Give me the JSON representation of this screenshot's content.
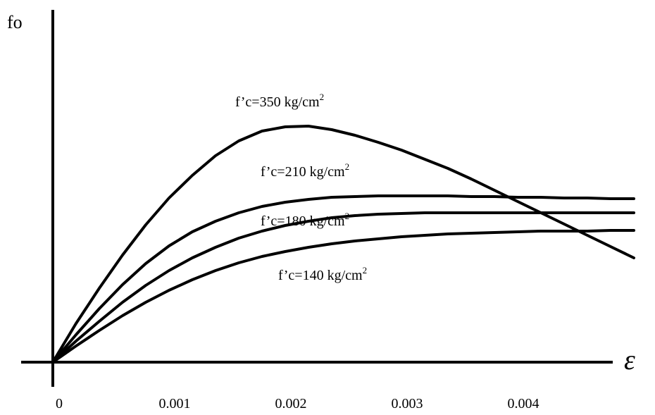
{
  "chart_data": {
    "type": "line",
    "title": "",
    "ylabel": "fo",
    "xlabel": "ε",
    "xlim": [
      0,
      0.005
    ],
    "ylim": [
      0,
      420
    ],
    "xticks": [
      "0",
      "0.001",
      "0.002",
      "0.003",
      "0.004"
    ],
    "xtick_values": [
      0,
      0.001,
      0.002,
      0.003,
      0.004
    ],
    "series": [
      {
        "name": "f’c=350 kg/cm2",
        "label_main": "f’c=350 kg/cm",
        "label_sup": "2",
        "x": [
          0,
          0.0002,
          0.0004,
          0.0006,
          0.0008,
          0.001,
          0.0012,
          0.0014,
          0.0016,
          0.0018,
          0.002,
          0.0022,
          0.0024,
          0.0026,
          0.0028,
          0.003,
          0.0032,
          0.0034,
          0.0036,
          0.0038,
          0.004,
          0.0042,
          0.0044,
          0.0046,
          0.0048,
          0.005
        ],
        "y": [
          0,
          55,
          105,
          152,
          195,
          233,
          265,
          293,
          314,
          328,
          334,
          335,
          330,
          322,
          312,
          301,
          288,
          275,
          260,
          244,
          228,
          212,
          196,
          180,
          164,
          148
        ]
      },
      {
        "name": "f’c=210 kg/cm2",
        "label_main": "f’c=210 kg/cm",
        "label_sup": "2",
        "x": [
          0,
          0.0002,
          0.0004,
          0.0006,
          0.0008,
          0.001,
          0.0012,
          0.0014,
          0.0016,
          0.0018,
          0.002,
          0.0022,
          0.0024,
          0.0026,
          0.0028,
          0.003,
          0.0032,
          0.0034,
          0.0036,
          0.0038,
          0.004,
          0.0042,
          0.0044,
          0.0046,
          0.0048,
          0.005
        ],
        "y": [
          0,
          39,
          76,
          110,
          140,
          165,
          185,
          200,
          212,
          221,
          227,
          231,
          234,
          235,
          236,
          236,
          236,
          236,
          235,
          235,
          234,
          234,
          233,
          233,
          232,
          232
        ]
      },
      {
        "name": "f’c=180 kg/cm2",
        "label_main": "f’c=180 kg/cm",
        "label_sup": "2",
        "x": [
          0,
          0.0002,
          0.0004,
          0.0006,
          0.0008,
          0.001,
          0.0012,
          0.0014,
          0.0016,
          0.0018,
          0.002,
          0.0022,
          0.0024,
          0.0026,
          0.0028,
          0.003,
          0.0032,
          0.0034,
          0.0036,
          0.0038,
          0.004,
          0.0042,
          0.0044,
          0.0046,
          0.0048,
          0.005
        ],
        "y": [
          0,
          30,
          58,
          85,
          109,
          130,
          148,
          163,
          176,
          186,
          194,
          200,
          205,
          208,
          210,
          211,
          212,
          212,
          212,
          212,
          212,
          212,
          212,
          212,
          212,
          212
        ]
      },
      {
        "name": "f’c=140 kg/cm2",
        "label_main": "f’c=140 kg/cm",
        "label_sup": "2",
        "x": [
          0,
          0.0002,
          0.0004,
          0.0006,
          0.0008,
          0.001,
          0.0012,
          0.0014,
          0.0016,
          0.0018,
          0.002,
          0.0022,
          0.0024,
          0.0026,
          0.0028,
          0.003,
          0.0032,
          0.0034,
          0.0036,
          0.0038,
          0.004,
          0.0042,
          0.0044,
          0.0046,
          0.0048,
          0.005
        ],
        "y": [
          0,
          23,
          45,
          66,
          85,
          102,
          117,
          130,
          141,
          150,
          157,
          163,
          168,
          172,
          175,
          178,
          180,
          182,
          183,
          184,
          185,
          186,
          186,
          186,
          187,
          187
        ]
      }
    ],
    "grid": false
  }
}
